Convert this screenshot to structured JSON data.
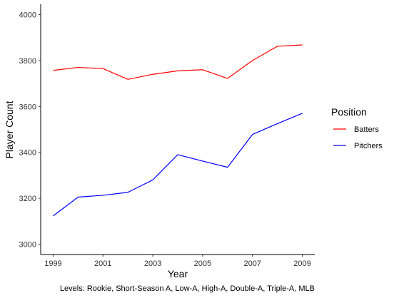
{
  "chart_data": {
    "type": "line",
    "title": "",
    "xlabel": "Year",
    "ylabel": "Player Count",
    "caption": "Levels: Rookie, Short-Season A, Low-A, High-A, Double-A, Triple-A, MLB",
    "x": [
      1999,
      2000,
      2001,
      2002,
      2003,
      2004,
      2005,
      2006,
      2007,
      2008,
      2009
    ],
    "xticks": [
      1999,
      2001,
      2003,
      2005,
      2007,
      2009
    ],
    "yticks": [
      3000,
      3200,
      3400,
      3600,
      3800,
      4000
    ],
    "xlim": [
      1998.5,
      2009.5
    ],
    "ylim": [
      2955,
      4045
    ],
    "grid": false,
    "legend_position": "right",
    "legend_title": "Position",
    "series": [
      {
        "name": "Batters",
        "color": "#ff0000",
        "values": [
          3757,
          3770,
          3765,
          3718,
          3740,
          3755,
          3760,
          3722,
          3800,
          3862,
          3868
        ]
      },
      {
        "name": "Pitchers",
        "color": "#0000ff",
        "values": [
          3123,
          3205,
          3213,
          3226,
          3280,
          3390,
          3362,
          3335,
          3478,
          3525,
          3570
        ]
      }
    ]
  }
}
